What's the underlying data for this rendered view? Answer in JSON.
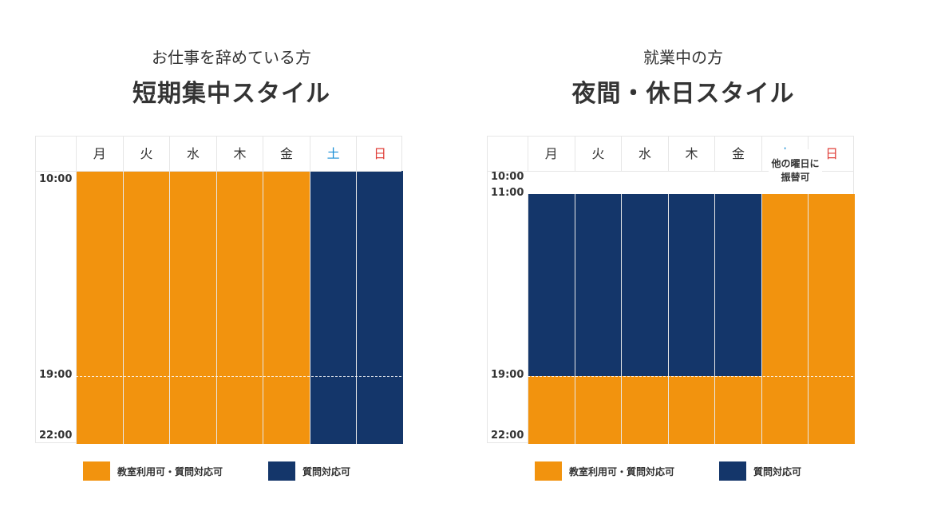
{
  "colors": {
    "classroom": "#F2930E",
    "question": "#14366A"
  },
  "days": [
    "月",
    "火",
    "水",
    "木",
    "金",
    "土",
    "日"
  ],
  "panels": [
    {
      "subtitle": "お仕事を辞めている方",
      "title": "短期集中スタイル",
      "times": [
        {
          "label": "10:00",
          "hour": 10
        },
        {
          "label": "19:00",
          "hour": 19
        },
        {
          "label": "22:00",
          "hour": 22
        }
      ],
      "segments": [
        [
          {
            "from": 10,
            "to": 22,
            "type": "classroom"
          }
        ],
        [
          {
            "from": 10,
            "to": 22,
            "type": "classroom"
          }
        ],
        [
          {
            "from": 10,
            "to": 22,
            "type": "classroom"
          }
        ],
        [
          {
            "from": 10,
            "to": 22,
            "type": "classroom"
          }
        ],
        [
          {
            "from": 10,
            "to": 22,
            "type": "classroom"
          }
        ],
        [
          {
            "from": 10,
            "to": 22,
            "type": "question"
          }
        ],
        [
          {
            "from": 10,
            "to": 22,
            "type": "question"
          }
        ]
      ]
    },
    {
      "subtitle": "就業中の方",
      "title": "夜間・休日スタイル",
      "times": [
        {
          "label": "10:00",
          "hour": 10
        },
        {
          "label": "11:00",
          "hour": 11
        },
        {
          "label": "19:00",
          "hour": 19
        },
        {
          "label": "22:00",
          "hour": 22
        }
      ],
      "segments": [
        [
          {
            "from": 11,
            "to": 19,
            "type": "question"
          },
          {
            "from": 19,
            "to": 22,
            "type": "classroom"
          }
        ],
        [
          {
            "from": 11,
            "to": 19,
            "type": "question"
          },
          {
            "from": 19,
            "to": 22,
            "type": "classroom"
          }
        ],
        [
          {
            "from": 11,
            "to": 19,
            "type": "question"
          },
          {
            "from": 19,
            "to": 22,
            "type": "classroom"
          }
        ],
        [
          {
            "from": 11,
            "to": 19,
            "type": "question"
          },
          {
            "from": 19,
            "to": 22,
            "type": "classroom"
          }
        ],
        [
          {
            "from": 11,
            "to": 19,
            "type": "question"
          },
          {
            "from": 19,
            "to": 22,
            "type": "classroom"
          }
        ],
        [
          {
            "from": 11,
            "to": 22,
            "type": "classroom"
          }
        ],
        [
          {
            "from": 11,
            "to": 22,
            "type": "classroom"
          }
        ]
      ],
      "note": [
        "他の曜日に",
        "振替可"
      ]
    }
  ],
  "legend": {
    "classroom": "教室利用可・質問対応可",
    "question": "質問対応可"
  }
}
